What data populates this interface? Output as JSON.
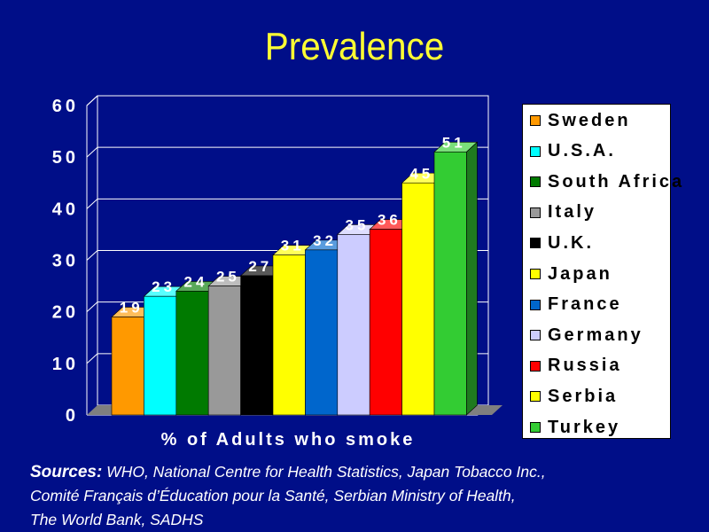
{
  "title": "Prevalence",
  "chart_data": {
    "type": "bar",
    "xlabel": "% of Adults who smoke",
    "ylabel": "",
    "ylim": [
      0,
      60
    ],
    "yticks": [
      0,
      10,
      20,
      30,
      40,
      50,
      60
    ],
    "grid": true,
    "legend": "right",
    "three_d": true,
    "categories": [
      "Sweden",
      "U.S.A.",
      "South Africa",
      "Italy",
      "U.K.",
      "Japan",
      "France",
      "Germany",
      "Russia",
      "Serbia",
      "Turkey"
    ],
    "values": [
      19,
      23,
      24,
      25,
      27,
      31,
      32,
      35,
      36,
      45,
      51
    ],
    "colors": [
      "#ff9900",
      "#00ffff",
      "#007a00",
      "#999999",
      "#000000",
      "#ffff00",
      "#0066cc",
      "#ccccff",
      "#ff0000",
      "#ffff00",
      "#33cc33"
    ]
  },
  "sources": {
    "label": "Sources:",
    "line1": " WHO, National Centre for Health Statistics, Japan Tobacco Inc.,",
    "line2": "Comité Français d’Éducation pour la Santé, Serbian Ministry of Health,",
    "line3": "The World Bank, SADHS"
  }
}
